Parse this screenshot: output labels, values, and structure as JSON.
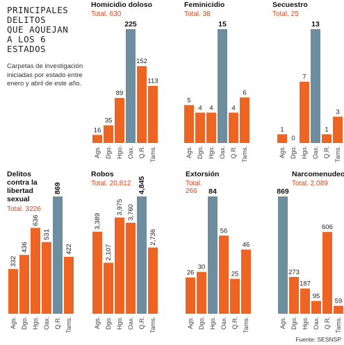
{
  "header": {
    "title": "PRINCIPALES\nDELITOS\nQUE AQUEJAN\nA LOS 6\nESTADOS",
    "description": "Carpetas de investigación iniciadas por estado entre enero y abril de este año."
  },
  "source": "Fuente: SESNSP",
  "colors": {
    "bar": "#ee6423",
    "highlight": "#6e8ea0",
    "total": "#d9461a"
  },
  "chart_data": [
    {
      "type": "bar",
      "title": "Homicidio doloso",
      "total": "Total. 630",
      "categories": [
        "Ags.",
        "Dgo.",
        "Hgo.",
        "Oax.",
        "Q.R.",
        "Tams."
      ],
      "values": [
        16,
        35,
        89,
        225,
        152,
        113
      ],
      "value_labels": [
        "16",
        "35",
        "89",
        "225",
        "152",
        "113"
      ],
      "highlight_index": 3
    },
    {
      "type": "bar",
      "title": "Feminicidio",
      "total": "Total. 38",
      "categories": [
        "Ags.",
        "Dgo.",
        "Hgo.",
        "Oax.",
        "Q.R.",
        "Tams."
      ],
      "values": [
        5,
        4,
        4,
        15,
        4,
        6
      ],
      "value_labels": [
        "5",
        "4",
        "4",
        "15",
        "4",
        "6"
      ],
      "highlight_index": 3
    },
    {
      "type": "bar",
      "title": "Secuestro",
      "total": "Total. 25",
      "categories": [
        "Ags.",
        "Dgo.",
        "Hgo.",
        "Oax.",
        "Q.R.",
        "Tams."
      ],
      "values": [
        1,
        0,
        7,
        13,
        1,
        3
      ],
      "value_labels": [
        "1",
        "0",
        "7",
        "13",
        "1",
        "3"
      ],
      "highlight_index": 3
    },
    {
      "type": "bar",
      "title": "Delitos contra la libertad sexual",
      "total": "Total. 3226",
      "categories": [
        "Ags.",
        "Dgo.",
        "Hgo.",
        "Oax.",
        "Q.R.",
        "Tams."
      ],
      "values": [
        332,
        436,
        636,
        531,
        869,
        422
      ],
      "value_labels": [
        "332",
        "436",
        "636",
        "531",
        "869",
        "422"
      ],
      "highlight_index": 4
    },
    {
      "type": "bar",
      "title": "Robos",
      "total": "Total. 20,812",
      "categories": [
        "Ags.",
        "Dgo.",
        "Hgo.",
        "Oax.",
        "Q.R.",
        "Tams."
      ],
      "values": [
        3389,
        2107,
        3975,
        3760,
        4845,
        2736
      ],
      "value_labels": [
        "3,389",
        "2,107",
        "3,975",
        "3,760",
        "4,845",
        "2,736"
      ],
      "highlight_index": 4
    },
    {
      "type": "bar",
      "title": "Extorsión",
      "total": "Total. 266",
      "categories": [
        "Ags.",
        "Dgo.",
        "Hgo.",
        "Oax.",
        "Q.R.",
        "Tams."
      ],
      "values": [
        26,
        30,
        84,
        56,
        25,
        46
      ],
      "value_labels": [
        "26",
        "30",
        "84",
        "56",
        "25",
        "46"
      ],
      "highlight_index": 2
    },
    {
      "type": "bar",
      "title": "Narcomenudeo",
      "total": "Total. 2,089",
      "categories": [
        "Ags.",
        "Dgo.",
        "Hgo.",
        "Oax.",
        "Q.R.",
        "Tams."
      ],
      "values": [
        869,
        273,
        187,
        95,
        606,
        59
      ],
      "value_labels": [
        "869",
        "273",
        "187",
        "95",
        "606",
        "59"
      ],
      "highlight_index": 0
    }
  ]
}
